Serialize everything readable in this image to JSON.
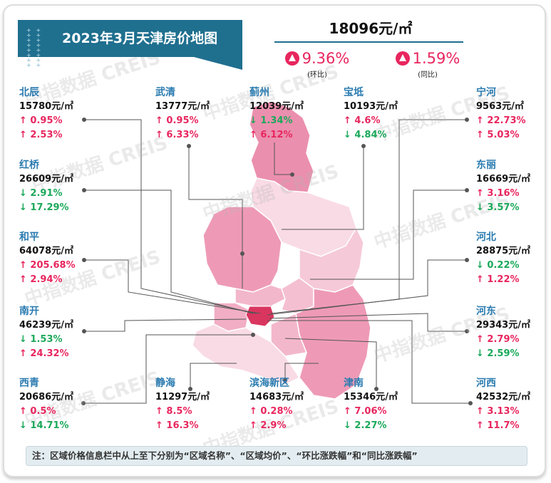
{
  "title": "2023年3月天津房价地图",
  "city_avg": {
    "price": "18096元/㎡",
    "mom": "9.36%",
    "mom_label": "(环比)",
    "yoy": "1.59%",
    "yoy_label": "(同比)"
  },
  "colors": {
    "up": "#e8265e",
    "down": "#1aa85a",
    "name": "#2a7bb0",
    "banner": "#1f6f8f"
  },
  "watermark": "中指数据 CREIS",
  "districts": [
    {
      "name": "北辰",
      "price": "15780元/㎡",
      "mom": "↑ 0.95%",
      "mom_dir": "up",
      "yoy": "↑ 2.53%",
      "yoy_dir": "up"
    },
    {
      "name": "武清",
      "price": "13777元/㎡",
      "mom": "↑ 0.95%",
      "mom_dir": "up",
      "yoy": "↑ 6.33%",
      "yoy_dir": "up"
    },
    {
      "name": "蓟州",
      "price": "12039元/㎡",
      "mom": "↓ 1.34%",
      "mom_dir": "dn",
      "yoy": "↑ 6.12%",
      "yoy_dir": "up"
    },
    {
      "name": "宝坻",
      "price": "10193元/㎡",
      "mom": "↑ 4.6%",
      "mom_dir": "up",
      "yoy": "↓ 4.84%",
      "yoy_dir": "dn"
    },
    {
      "name": "宁河",
      "price": "9563元/㎡",
      "mom": "↑ 22.73%",
      "mom_dir": "up",
      "yoy": "↑ 5.03%",
      "yoy_dir": "up"
    },
    {
      "name": "红桥",
      "price": "26609元/㎡",
      "mom": "↓ 2.91%",
      "mom_dir": "dn",
      "yoy": "↓ 17.29%",
      "yoy_dir": "dn"
    },
    {
      "name": "东丽",
      "price": "16669元/㎡",
      "mom": "↑ 3.16%",
      "mom_dir": "up",
      "yoy": "↓ 3.57%",
      "yoy_dir": "dn"
    },
    {
      "name": "和平",
      "price": "64078元/㎡",
      "mom": "↑ 205.68%",
      "mom_dir": "up",
      "yoy": "↑ 2.94%",
      "yoy_dir": "up"
    },
    {
      "name": "河北",
      "price": "28875元/㎡",
      "mom": "↓ 0.22%",
      "mom_dir": "dn",
      "yoy": "↑ 1.22%",
      "yoy_dir": "up"
    },
    {
      "name": "南开",
      "price": "46239元/㎡",
      "mom": "↓ 1.53%",
      "mom_dir": "dn",
      "yoy": "↑ 24.32%",
      "yoy_dir": "up"
    },
    {
      "name": "河东",
      "price": "29343元/㎡",
      "mom": "↑ 2.79%",
      "mom_dir": "up",
      "yoy": "↓ 2.59%",
      "yoy_dir": "dn"
    },
    {
      "name": "西青",
      "price": "20686元/㎡",
      "mom": "↑ 0.5%",
      "mom_dir": "up",
      "yoy": "↓ 14.71%",
      "yoy_dir": "dn"
    },
    {
      "name": "静海",
      "price": "11297元/㎡",
      "mom": "↑ 8.5%",
      "mom_dir": "up",
      "yoy": "↑ 16.3%",
      "yoy_dir": "up"
    },
    {
      "name": "滨海新区",
      "price": "14683元/㎡",
      "mom": "↑ 0.28%",
      "mom_dir": "up",
      "yoy": "↑ 2.9%",
      "yoy_dir": "up"
    },
    {
      "name": "津南",
      "price": "15346元/㎡",
      "mom": "↑ 7.06%",
      "mom_dir": "up",
      "yoy": "↓ 2.27%",
      "yoy_dir": "dn"
    },
    {
      "name": "河西",
      "price": "42532元/㎡",
      "mom": "↑ 3.13%",
      "mom_dir": "up",
      "yoy": "↑ 11.7%",
      "yoy_dir": "up"
    }
  ],
  "note": "注：区域价格信息栏中从上至下分别为“区域名称”、“区域均价”、“环比涨跌幅”和“同比涨跌幅”"
}
